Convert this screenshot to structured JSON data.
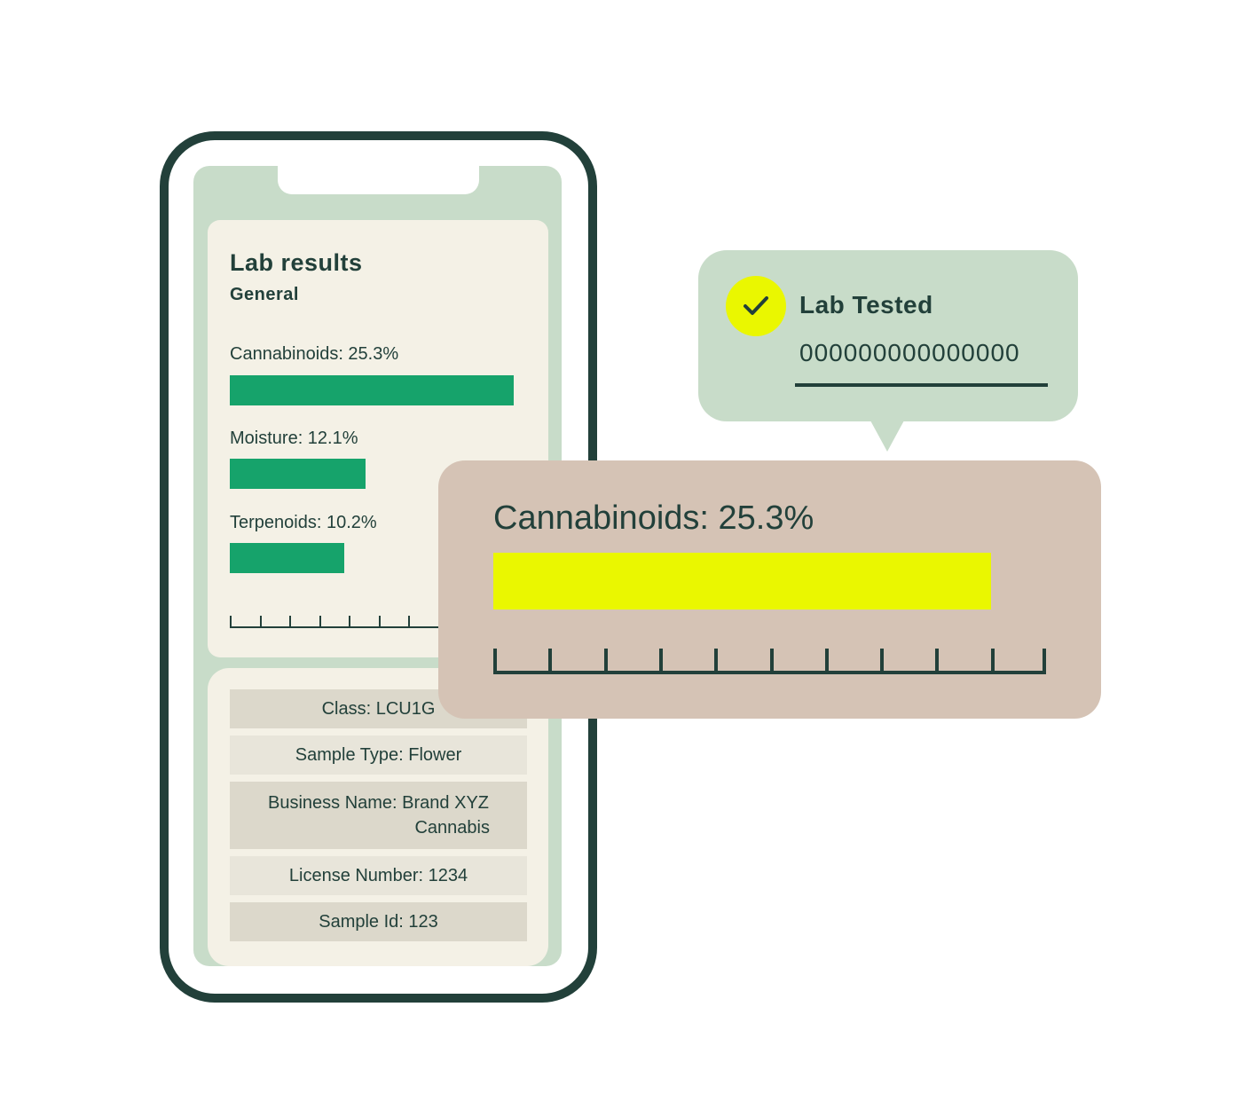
{
  "phone": {
    "title": "Lab results",
    "subtitle": "General",
    "metrics": [
      {
        "label": "Cannabinoids: 25.3%",
        "value": 25.3
      },
      {
        "label": "Moisture: 12.1%",
        "value": 12.1
      },
      {
        "label": "Terpenoids: 10.2%",
        "value": 10.2
      }
    ],
    "details": [
      {
        "line1": "Class: LCU1G",
        "line2": ""
      },
      {
        "line1": "Sample Type: Flower",
        "line2": ""
      },
      {
        "line1": "Business Name: Brand XYZ",
        "line2": "Cannabis"
      },
      {
        "line1": "License Number: 1234",
        "line2": ""
      },
      {
        "line1": "Sample Id: 123",
        "line2": ""
      }
    ]
  },
  "highlight": {
    "label": "Cannabinoids: 25.3%",
    "value": 25.3
  },
  "badge": {
    "title": "Lab Tested",
    "number": "000000000000000",
    "icon": "check-icon"
  },
  "colors": {
    "dark": "#22403a",
    "green": "#16a36b",
    "yellow": "#eaf700",
    "mint": "#c8dcc9",
    "tan": "#d5c3b5",
    "cream": "#f4f1e6"
  }
}
